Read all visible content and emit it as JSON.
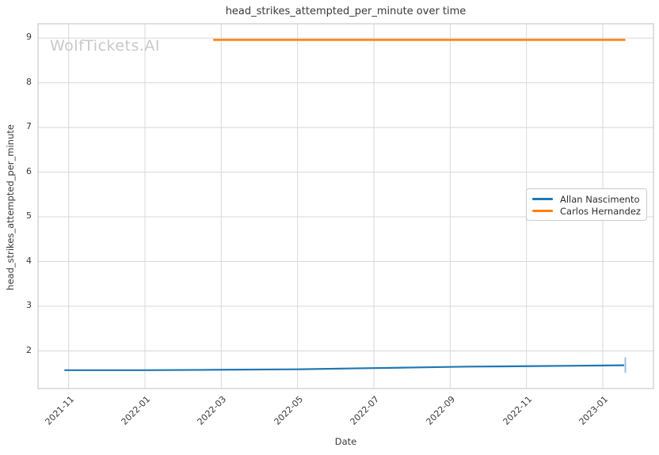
{
  "title": "head_strikes_attempted_per_minute over time",
  "watermark": "WolfTickets.AI",
  "chart_data": {
    "type": "line",
    "title": "head_strikes_attempted_per_minute over time",
    "xlabel": "Date",
    "ylabel": "head_strikes_attempted_per_minute",
    "xlim": [
      "2021-10-07",
      "2023-02-11"
    ],
    "ylim": [
      1.16,
      9.32
    ],
    "grid": true,
    "legend_position": "right, vertically centered",
    "x_ticks": [
      {
        "label": "2021-11",
        "date": "2021-11-01"
      },
      {
        "label": "2022-01",
        "date": "2022-01-01"
      },
      {
        "label": "2022-03",
        "date": "2022-03-01"
      },
      {
        "label": "2022-05",
        "date": "2022-05-01"
      },
      {
        "label": "2022-07",
        "date": "2022-07-01"
      },
      {
        "label": "2022-09",
        "date": "2022-09-01"
      },
      {
        "label": "2022-11",
        "date": "2022-11-01"
      },
      {
        "label": "2023-01",
        "date": "2023-01-01"
      }
    ],
    "y_ticks": [
      2,
      3,
      4,
      5,
      6,
      7,
      8,
      9
    ],
    "series": [
      {
        "name": "Allan Nascimento",
        "color": "#1f77b4",
        "line_width": 2.2,
        "opacity": 1,
        "points": [
          {
            "date": "2021-10-28",
            "value": 1.57
          },
          {
            "date": "2022-01-01",
            "value": 1.57
          },
          {
            "date": "2022-03-01",
            "value": 1.58
          },
          {
            "date": "2022-05-01",
            "value": 1.59
          },
          {
            "date": "2022-06-15",
            "value": 1.61
          },
          {
            "date": "2022-08-01",
            "value": 1.63
          },
          {
            "date": "2022-09-15",
            "value": 1.65
          },
          {
            "date": "2022-11-01",
            "value": 1.66
          },
          {
            "date": "2022-12-10",
            "value": 1.67
          },
          {
            "date": "2023-01-18",
            "value": 1.68
          }
        ],
        "end_spike": {
          "date": "2023-01-19",
          "from": 1.86,
          "to": 1.51,
          "opacity": 0.45
        }
      },
      {
        "name": "Carlos Hernandez",
        "color": "#ff7f0e",
        "line_width": 2.8,
        "opacity": 0.95,
        "points": [
          {
            "date": "2022-02-25",
            "value": 8.96
          },
          {
            "date": "2023-01-19",
            "value": 8.96
          }
        ]
      }
    ],
    "colors": {
      "grid": "#d8d8d8",
      "spine": "#cccccc",
      "text": "#3a3a3a",
      "watermark": "#c9c9c9"
    }
  }
}
